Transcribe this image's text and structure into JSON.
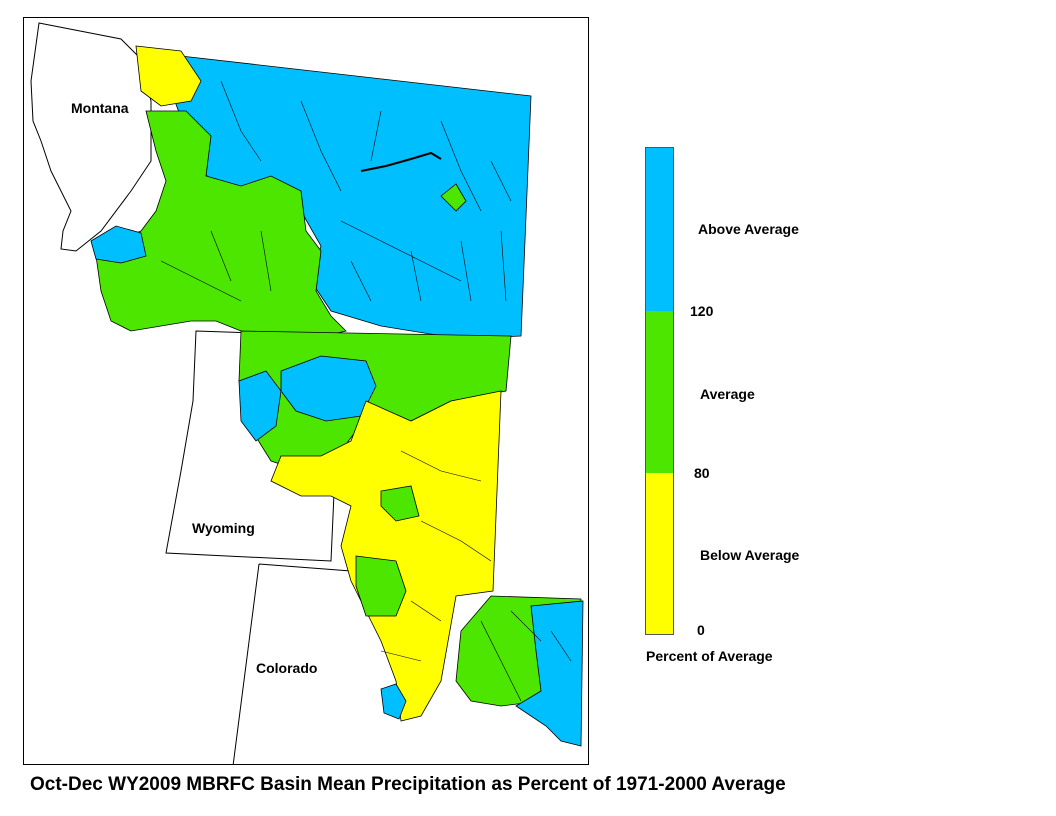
{
  "map": {
    "states": {
      "montana": "Montana",
      "wyoming": "Wyoming",
      "colorado": "Colorado"
    },
    "colors": {
      "above": "#00bfff",
      "average": "#4ce600",
      "below": "#ffff00",
      "outside": "#ffffff",
      "outline": "#000000"
    }
  },
  "legend": {
    "above_label": "Above Average",
    "average_label": "Average",
    "below_label": "Below Average",
    "tick_120": "120",
    "tick_80": "80",
    "tick_0": "0",
    "title": "Percent of Average",
    "colors": {
      "above": "#00bfff",
      "average": "#4ce600",
      "below": "#ffff00"
    }
  },
  "caption": "Oct-Dec WY2009 MBRFC Basin Mean Precipitation as Percent of 1971-2000 Average"
}
